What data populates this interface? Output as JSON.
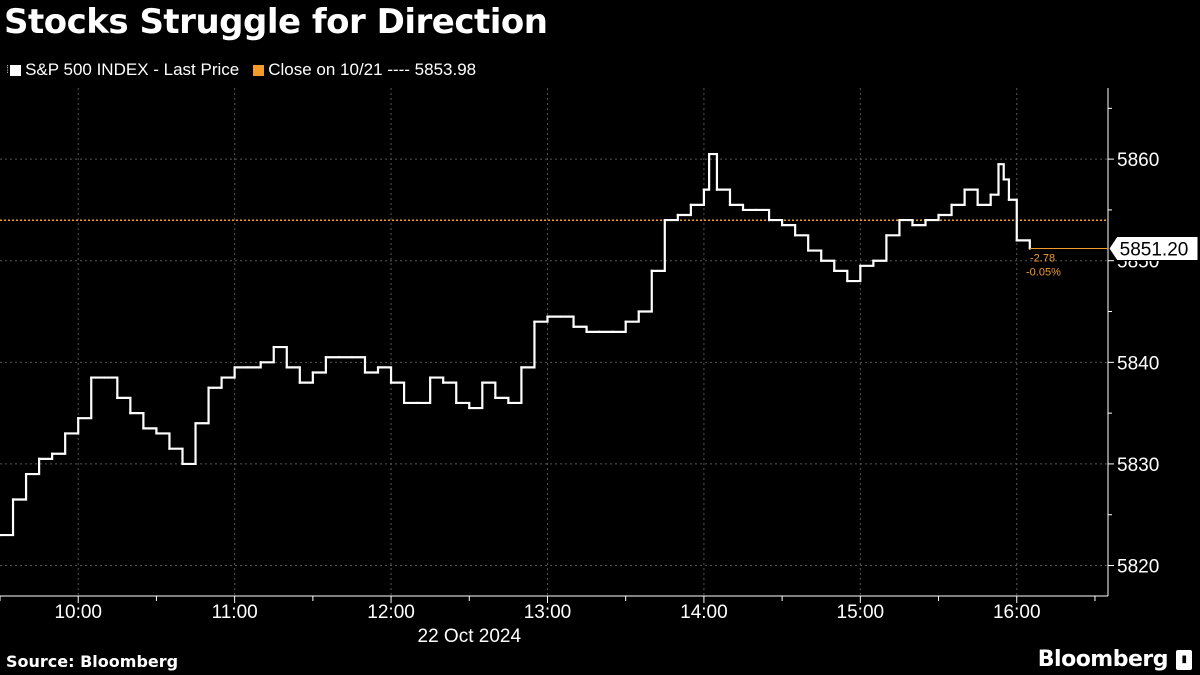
{
  "header": {
    "title": "Stocks Struggle for Direction"
  },
  "legend": {
    "series_label": "S&P 500 INDEX - Last Price",
    "ref_label": "Close on 10/21 ---- 5853.98"
  },
  "footer": {
    "source": "Source: Bloomberg",
    "brand": "Bloomberg"
  },
  "colors": {
    "background": "#000000",
    "series": "#ffffff",
    "reference": "#f39c2b",
    "grid": "#555555"
  },
  "chart_data": {
    "type": "line",
    "title": "Stocks Struggle for Direction",
    "xlabel": "22 Oct 2024",
    "ylabel": "",
    "x_ticks": [
      "10:00",
      "11:00",
      "12:00",
      "13:00",
      "14:00",
      "15:00",
      "16:00"
    ],
    "y_ticks": [
      "5820",
      "5830",
      "5840",
      "5850",
      "5860"
    ],
    "ylim": [
      5817,
      5867
    ],
    "xlim": [
      "09:30",
      "16:35"
    ],
    "grid": true,
    "series": [
      {
        "name": "S&P 500 INDEX - Last Price",
        "x": [
          "09:30",
          "09:35",
          "09:40",
          "09:45",
          "09:50",
          "09:55",
          "10:00",
          "10:05",
          "10:10",
          "10:15",
          "10:20",
          "10:25",
          "10:30",
          "10:35",
          "10:40",
          "10:45",
          "10:50",
          "10:55",
          "11:00",
          "11:05",
          "11:10",
          "11:15",
          "11:20",
          "11:25",
          "11:30",
          "11:35",
          "11:40",
          "11:45",
          "11:50",
          "11:55",
          "12:00",
          "12:05",
          "12:10",
          "12:15",
          "12:20",
          "12:25",
          "12:30",
          "12:35",
          "12:40",
          "12:45",
          "12:50",
          "12:55",
          "13:00",
          "13:05",
          "13:10",
          "13:15",
          "13:20",
          "13:25",
          "13:30",
          "13:35",
          "13:40",
          "13:45",
          "13:50",
          "13:55",
          "14:00",
          "14:02",
          "14:05",
          "14:10",
          "14:15",
          "14:20",
          "14:25",
          "14:30",
          "14:35",
          "14:40",
          "14:45",
          "14:50",
          "14:55",
          "15:00",
          "15:05",
          "15:10",
          "15:15",
          "15:20",
          "15:25",
          "15:30",
          "15:35",
          "15:40",
          "15:45",
          "15:50",
          "15:53",
          "15:55",
          "15:57",
          "16:00",
          "16:05"
        ],
        "values": [
          5823,
          5826.5,
          5829,
          5830.5,
          5831,
          5833,
          5834.5,
          5838.5,
          5838.5,
          5836.5,
          5835,
          5833.5,
          5833,
          5831.5,
          5830,
          5834,
          5837.5,
          5838.5,
          5839.5,
          5839.5,
          5840,
          5841.5,
          5839.5,
          5838,
          5839,
          5840.5,
          5840.5,
          5840.5,
          5839,
          5839.5,
          5838,
          5836,
          5836,
          5838.5,
          5838,
          5836,
          5835.5,
          5838,
          5836.5,
          5836,
          5839.5,
          5844,
          5844.5,
          5844.5,
          5843.5,
          5843,
          5843,
          5843,
          5844,
          5845,
          5849,
          5854,
          5854.5,
          5855.5,
          5857,
          5860.5,
          5857,
          5855.5,
          5855,
          5855,
          5854,
          5853.5,
          5852.5,
          5851,
          5850,
          5849,
          5848,
          5849.5,
          5850,
          5852.5,
          5854,
          5853.5,
          5854,
          5854.5,
          5855.5,
          5857,
          5855.5,
          5856.5,
          5859.5,
          5858,
          5856,
          5852,
          5851.2
        ]
      }
    ],
    "reference_line": {
      "label": "Close on 10/21",
      "value": 5853.98
    },
    "last_value": {
      "value": "5851.20",
      "change": "-2.78",
      "change_pct": "-0.05%"
    }
  }
}
